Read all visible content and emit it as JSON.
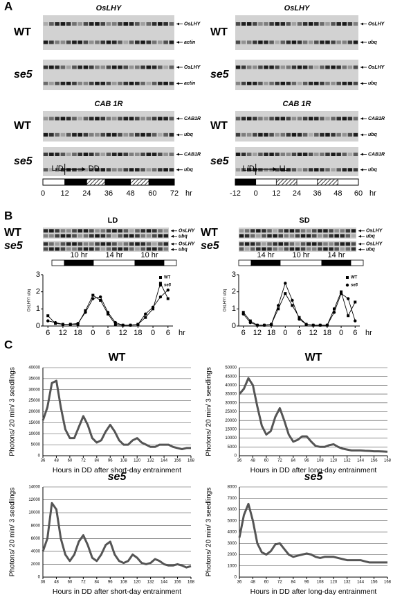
{
  "panels": {
    "a": {
      "label": "A",
      "left": {
        "blots": [
          {
            "title": "OsLHY",
            "rows": [
              {
                "genotype": "WT",
                "markers": [
                  "OsLHY",
                  "actin"
                ]
              },
              {
                "genotype": "se5",
                "markers": [
                  "OsLHY",
                  "actin"
                ]
              }
            ]
          },
          {
            "title": "CAB 1R",
            "rows": [
              {
                "genotype": "WT",
                "markers": [
                  "CAB1R",
                  "ubq"
                ]
              },
              {
                "genotype": "se5",
                "markers": [
                  "CAB1R",
                  "ubq"
                ]
              }
            ]
          }
        ],
        "timeline": {
          "start": "L/D",
          "condition": "DD",
          "ticks": [
            0,
            12,
            24,
            36,
            48,
            60,
            72
          ],
          "unit": "hr"
        }
      },
      "right": {
        "blots": [
          {
            "title": "OsLHY",
            "rows": [
              {
                "genotype": "WT",
                "markers": [
                  "OsLHY",
                  "ubq"
                ]
              },
              {
                "genotype": "se5",
                "markers": [
                  "OsLHY",
                  "ubq"
                ]
              }
            ]
          },
          {
            "title": "CAB 1R",
            "rows": [
              {
                "genotype": "WT",
                "markers": [
                  "CAB1R",
                  "ubq"
                ]
              },
              {
                "genotype": "se5",
                "markers": [
                  "CAB1R",
                  "ubq"
                ]
              }
            ]
          }
        ],
        "timeline": {
          "start": "L/D",
          "condition": "LL",
          "ticks": [
            -12,
            0,
            12,
            24,
            36,
            48,
            60
          ],
          "unit": "hr"
        }
      }
    },
    "b": {
      "label": "B",
      "ld": {
        "title": "LD",
        "rows": [
          {
            "genotype": "WT",
            "markers": [
              "OsLHY",
              "ubq"
            ]
          },
          {
            "genotype": "se5",
            "markers": [
              "OsLHY",
              "ubq"
            ]
          }
        ],
        "photoperiod": [
          "10 hr",
          "14 hr",
          "10 hr"
        ]
      },
      "sd": {
        "title": "SD",
        "rows": [
          {
            "genotype": "WT",
            "markers": [
              "OsLHY",
              "ubq"
            ]
          },
          {
            "genotype": "se5",
            "markers": [
              "OsLHY",
              "ubq"
            ]
          }
        ],
        "photoperiod": [
          "14 hr",
          "10 hr",
          "14 hr"
        ]
      }
    },
    "c": {
      "label": "C"
    }
  },
  "chart_data": [
    {
      "type": "line",
      "ylabel": "OsLHY/ ubq",
      "xlabel": "hr",
      "legend": "upper right",
      "x": [
        6,
        9,
        12,
        15,
        18,
        21,
        24,
        27,
        30,
        33,
        36,
        39,
        42,
        45,
        48,
        51,
        54
      ],
      "xlim": [
        4,
        56
      ],
      "xticks": [
        6,
        12,
        18,
        {
          "value": 24,
          "label": "0"
        },
        {
          "value": 30,
          "label": "6"
        },
        {
          "value": 36,
          "label": "12"
        },
        {
          "value": 42,
          "label": "18"
        },
        {
          "value": 48,
          "label": "0"
        },
        {
          "value": 54,
          "label": "6"
        }
      ],
      "ylim": [
        0,
        3
      ],
      "yticks": [
        0,
        1,
        2,
        3
      ],
      "series": [
        {
          "name": "WT",
          "color": "#000000",
          "marker": "square",
          "values": [
            0.6,
            0.15,
            0.1,
            0.1,
            0.1,
            0.9,
            1.8,
            1.5,
            0.7,
            0.1,
            0.05,
            0.05,
            0.1,
            0.5,
            1.0,
            2.5,
            1.6
          ]
        },
        {
          "name": "se5",
          "color": "#000000",
          "marker": "circle",
          "values": [
            0.3,
            0.2,
            0.1,
            0.1,
            0.15,
            0.8,
            1.6,
            1.7,
            0.8,
            0.2,
            0.05,
            0.05,
            0.1,
            0.7,
            1.1,
            1.7,
            2.1
          ]
        }
      ]
    },
    {
      "type": "line",
      "ylabel": "OsLHY/ ubq",
      "xlabel": "hr",
      "legend": "upper right",
      "x": [
        6,
        9,
        12,
        15,
        18,
        21,
        24,
        27,
        30,
        33,
        36,
        39,
        42,
        45,
        48,
        51,
        54
      ],
      "xlim": [
        4,
        56
      ],
      "xticks": [
        6,
        12,
        18,
        {
          "value": 24,
          "label": "0"
        },
        {
          "value": 30,
          "label": "6"
        },
        {
          "value": 36,
          "label": "12"
        },
        {
          "value": 42,
          "label": "18"
        },
        {
          "value": 48,
          "label": "0"
        },
        {
          "value": 54,
          "label": "6"
        }
      ],
      "ylim": [
        0,
        3
      ],
      "yticks": [
        0,
        1,
        2,
        3
      ],
      "series": [
        {
          "name": "WT",
          "color": "#000000",
          "marker": "square",
          "values": [
            0.8,
            0.3,
            0.05,
            0.05,
            0.1,
            1.0,
            1.9,
            1.2,
            0.5,
            0.1,
            0.05,
            0.05,
            0.05,
            1.0,
            2.0,
            0.6,
            1.4
          ]
        },
        {
          "name": "se5",
          "color": "#000000",
          "marker": "circle",
          "values": [
            0.7,
            0.2,
            0.05,
            0.05,
            0.1,
            1.2,
            2.5,
            1.5,
            0.4,
            0.1,
            0.05,
            0.05,
            0.05,
            0.8,
            1.9,
            1.6,
            0.3
          ]
        }
      ]
    },
    {
      "type": "line",
      "title": "WT",
      "xlabel": "Hours in DD after short-day entrainment",
      "ylabel": "Photons/ 20 min/ 3 seedlings",
      "grid": true,
      "color": "#555555",
      "x": [
        36,
        40,
        44,
        48,
        52,
        56,
        60,
        64,
        68,
        72,
        76,
        80,
        84,
        88,
        92,
        96,
        100,
        104,
        108,
        112,
        116,
        120,
        124,
        128,
        132,
        136,
        140,
        144,
        148,
        152,
        156,
        160,
        164,
        168
      ],
      "xlim": [
        36,
        168
      ],
      "xticks": [
        36,
        48,
        60,
        72,
        84,
        96,
        108,
        120,
        132,
        144,
        156,
        168
      ],
      "ylim": [
        0,
        40000
      ],
      "yticks": [
        0,
        5000,
        10000,
        15000,
        20000,
        25000,
        30000,
        35000,
        40000
      ],
      "values": [
        16000,
        22000,
        33000,
        34000,
        22000,
        12000,
        8000,
        8000,
        13000,
        18000,
        14000,
        8000,
        6000,
        7000,
        11000,
        14000,
        11000,
        7000,
        5000,
        5000,
        7000,
        8000,
        6000,
        5000,
        4000,
        4000,
        5000,
        5000,
        5000,
        4000,
        3500,
        3000,
        3500,
        3500
      ]
    },
    {
      "type": "line",
      "title": "WT",
      "xlabel": "Hours in DD after long-day entrainment",
      "ylabel": "Photons/ 20 min/ 3 seedlings",
      "grid": true,
      "color": "#555555",
      "x": [
        36,
        40,
        44,
        48,
        52,
        56,
        60,
        64,
        68,
        72,
        76,
        80,
        84,
        88,
        92,
        96,
        100,
        104,
        108,
        112,
        116,
        120,
        124,
        128,
        132,
        136,
        140,
        144,
        148,
        152,
        156,
        160,
        164,
        168
      ],
      "xlim": [
        36,
        168
      ],
      "xticks": [
        36,
        48,
        60,
        72,
        84,
        96,
        108,
        120,
        132,
        144,
        156,
        168
      ],
      "ylim": [
        0,
        50000
      ],
      "yticks": [
        0,
        5000,
        10000,
        15000,
        20000,
        25000,
        30000,
        35000,
        40000,
        45000,
        50000
      ],
      "values": [
        35000,
        38000,
        44000,
        40000,
        28000,
        17000,
        12000,
        14000,
        22000,
        27000,
        20000,
        12000,
        8000,
        9000,
        11000,
        11000,
        8000,
        5500,
        5000,
        5000,
        6000,
        6500,
        5000,
        4000,
        3500,
        3000,
        3000,
        3000,
        2800,
        2700,
        2500,
        2500,
        2400,
        2300
      ]
    },
    {
      "type": "line",
      "title": "se5",
      "xlabel": "Hours in DD after short-day entrainment",
      "ylabel": "Photons/ 20 min/ 3 seedlings",
      "grid": true,
      "color": "#555555",
      "x": [
        36,
        40,
        44,
        48,
        52,
        56,
        60,
        64,
        68,
        72,
        76,
        80,
        84,
        88,
        92,
        96,
        100,
        104,
        108,
        112,
        116,
        120,
        124,
        128,
        132,
        136,
        140,
        144,
        148,
        152,
        156,
        160,
        164,
        168
      ],
      "xlim": [
        36,
        168
      ],
      "xticks": [
        36,
        48,
        60,
        72,
        84,
        96,
        108,
        120,
        132,
        144,
        156,
        168
      ],
      "ylim": [
        0,
        14000
      ],
      "yticks": [
        0,
        2000,
        4000,
        6000,
        8000,
        10000,
        12000,
        14000
      ],
      "values": [
        4000,
        6000,
        11500,
        10500,
        6000,
        3500,
        2500,
        3500,
        5500,
        6500,
        5000,
        3000,
        2500,
        3500,
        5000,
        5500,
        3500,
        2500,
        2200,
        2500,
        3500,
        3000,
        2200,
        2000,
        2200,
        2800,
        2500,
        2000,
        1800,
        1800,
        2000,
        1800,
        1500,
        1700
      ]
    },
    {
      "type": "line",
      "title": "se5",
      "xlabel": "Hours in DD after long-day entrainment",
      "ylabel": "Photons/ 20 min/ 3 seedlings",
      "grid": true,
      "color": "#555555",
      "x": [
        36,
        40,
        44,
        48,
        52,
        56,
        60,
        64,
        68,
        72,
        76,
        80,
        84,
        88,
        92,
        96,
        100,
        104,
        108,
        112,
        116,
        120,
        124,
        128,
        132,
        136,
        140,
        144,
        148,
        152,
        156,
        160,
        164,
        168
      ],
      "xlim": [
        36,
        168
      ],
      "xticks": [
        36,
        48,
        60,
        72,
        84,
        96,
        108,
        120,
        132,
        144,
        156,
        168
      ],
      "ylim": [
        0,
        8000
      ],
      "yticks": [
        0,
        1000,
        2000,
        3000,
        4000,
        5000,
        6000,
        7000,
        8000
      ],
      "values": [
        3500,
        5500,
        6500,
        5000,
        3000,
        2200,
        2000,
        2300,
        2900,
        3000,
        2500,
        2000,
        1800,
        1900,
        2000,
        2100,
        2000,
        1800,
        1700,
        1800,
        1800,
        1800,
        1700,
        1600,
        1500,
        1500,
        1500,
        1500,
        1400,
        1300,
        1300,
        1300,
        1300,
        1300
      ]
    }
  ]
}
